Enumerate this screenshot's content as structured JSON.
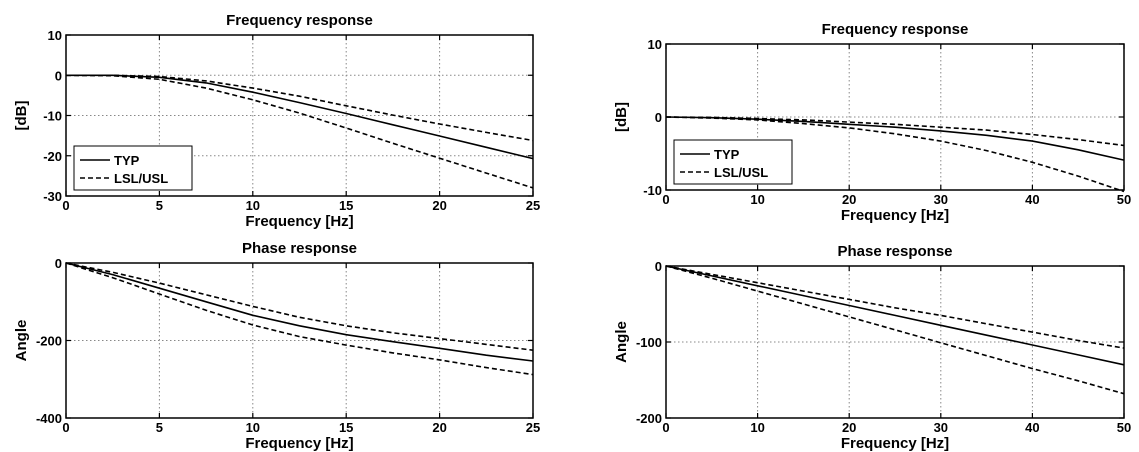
{
  "chart_data": [
    {
      "type": "line",
      "title": "Frequency response",
      "xlabel": "Frequency [Hz]",
      "ylabel": "[dB]",
      "xlim": [
        0,
        25
      ],
      "ylim": [
        -30,
        10
      ],
      "xticks": [
        0,
        5,
        10,
        15,
        20,
        25
      ],
      "yticks": [
        -30,
        -20,
        -10,
        0,
        10
      ],
      "grid": true,
      "legend": {
        "placement": "bottom-left",
        "entries": [
          {
            "label": "TYP",
            "style": "solid"
          },
          {
            "label": "LSL/USL",
            "style": "dashed"
          }
        ]
      },
      "series": [
        {
          "name": "TYP",
          "style": "solid",
          "x": [
            0,
            2.5,
            5,
            7.5,
            10,
            12.5,
            15,
            17.5,
            20,
            22.5,
            25
          ],
          "y": [
            0,
            0,
            -0.5,
            -1.9,
            -4.2,
            -6.8,
            -9.5,
            -12.3,
            -15.1,
            -17.9,
            -20.7
          ]
        },
        {
          "name": "LSL/USL",
          "style": "dashed",
          "x": [
            0,
            2.5,
            5,
            7.5,
            10,
            12.5,
            15,
            17.5,
            20,
            22.5,
            25
          ],
          "y": [
            0,
            0,
            -0.3,
            -1.4,
            -3.2,
            -5.2,
            -7.6,
            -9.9,
            -12.1,
            -14.2,
            -16.2
          ]
        },
        {
          "name": "LSL/USL",
          "style": "dashed",
          "x": [
            0,
            2.5,
            5,
            7.5,
            10,
            12.5,
            15,
            17.5,
            20,
            22.5,
            25
          ],
          "y": [
            0,
            -0.1,
            -1.0,
            -3.2,
            -6.1,
            -9.4,
            -13.1,
            -16.9,
            -20.6,
            -24.3,
            -28.0
          ]
        }
      ]
    },
    {
      "type": "line",
      "title": "Phase response",
      "xlabel": "Frequency [Hz]",
      "ylabel": "Angle",
      "xlim": [
        0,
        25
      ],
      "ylim": [
        -400,
        0
      ],
      "xticks": [
        0,
        5,
        10,
        15,
        20,
        25
      ],
      "yticks": [
        -400,
        -200,
        0
      ],
      "grid": true,
      "series": [
        {
          "name": "TYP",
          "style": "solid",
          "x": [
            0,
            2.5,
            5,
            7.5,
            10,
            12.5,
            15,
            17.5,
            20,
            22.5,
            25
          ],
          "y": [
            0,
            -30,
            -65,
            -100,
            -135,
            -162,
            -185,
            -203,
            -220,
            -238,
            -253
          ]
        },
        {
          "name": "LSL/USL",
          "style": "dashed",
          "x": [
            0,
            2.5,
            5,
            7.5,
            10,
            12.5,
            15,
            17.5,
            20,
            22.5,
            25
          ],
          "y": [
            0,
            -24,
            -52,
            -82,
            -112,
            -140,
            -162,
            -180,
            -195,
            -210,
            -225
          ]
        },
        {
          "name": "LSL/USL",
          "style": "dashed",
          "x": [
            0,
            2.5,
            5,
            7.5,
            10,
            12.5,
            15,
            17.5,
            20,
            22.5,
            25
          ],
          "y": [
            0,
            -38,
            -80,
            -122,
            -160,
            -190,
            -212,
            -232,
            -250,
            -270,
            -288
          ]
        }
      ]
    },
    {
      "type": "line",
      "title": "Frequency response",
      "xlabel": "Frequency [Hz]",
      "ylabel": "[dB]",
      "xlim": [
        0,
        50
      ],
      "ylim": [
        -10,
        10
      ],
      "xticks": [
        0,
        10,
        20,
        30,
        40,
        50
      ],
      "yticks": [
        -10,
        0,
        10
      ],
      "grid": true,
      "legend": {
        "placement": "bottom-left",
        "entries": [
          {
            "label": "TYP",
            "style": "solid"
          },
          {
            "label": "LSL/USL",
            "style": "dashed"
          }
        ]
      },
      "series": [
        {
          "name": "TYP",
          "style": "solid",
          "x": [
            0,
            5,
            10,
            15,
            20,
            25,
            30,
            35,
            40,
            45,
            50
          ],
          "y": [
            0,
            -0.1,
            -0.3,
            -0.6,
            -1.0,
            -1.4,
            -1.9,
            -2.5,
            -3.3,
            -4.5,
            -5.9
          ]
        },
        {
          "name": "LSL/USL",
          "style": "dashed",
          "x": [
            0,
            5,
            10,
            15,
            20,
            25,
            30,
            35,
            40,
            45,
            50
          ],
          "y": [
            0,
            -0.05,
            -0.2,
            -0.4,
            -0.7,
            -1.0,
            -1.4,
            -1.8,
            -2.4,
            -3.1,
            -3.9
          ]
        },
        {
          "name": "LSL/USL",
          "style": "dashed",
          "x": [
            0,
            5,
            10,
            15,
            20,
            25,
            30,
            35,
            40,
            45,
            50
          ],
          "y": [
            0,
            -0.15,
            -0.4,
            -0.9,
            -1.5,
            -2.3,
            -3.3,
            -4.6,
            -6.2,
            -8.1,
            -10.2
          ]
        }
      ]
    },
    {
      "type": "line",
      "title": "Phase response",
      "xlabel": "Frequency [Hz]",
      "ylabel": "Angle",
      "xlim": [
        0,
        50
      ],
      "ylim": [
        -200,
        0
      ],
      "xticks": [
        0,
        10,
        20,
        30,
        40,
        50
      ],
      "yticks": [
        -200,
        -100,
        0
      ],
      "grid": true,
      "series": [
        {
          "name": "TYP",
          "style": "solid",
          "x": [
            0,
            5,
            10,
            15,
            20,
            25,
            30,
            35,
            40,
            45,
            50
          ],
          "y": [
            0,
            -13,
            -26,
            -39,
            -52,
            -65,
            -78,
            -91,
            -104,
            -117,
            -130
          ]
        },
        {
          "name": "LSL/USL",
          "style": "dashed",
          "x": [
            0,
            5,
            10,
            15,
            20,
            25,
            30,
            35,
            40,
            45,
            50
          ],
          "y": [
            0,
            -11,
            -22,
            -33,
            -44,
            -55,
            -65,
            -76,
            -87,
            -98,
            -108
          ]
        },
        {
          "name": "LSL/USL",
          "style": "dashed",
          "x": [
            0,
            5,
            10,
            15,
            20,
            25,
            30,
            35,
            40,
            45,
            50
          ],
          "y": [
            0,
            -16,
            -33,
            -50,
            -67,
            -84,
            -101,
            -118,
            -135,
            -151,
            -168
          ]
        }
      ]
    }
  ]
}
